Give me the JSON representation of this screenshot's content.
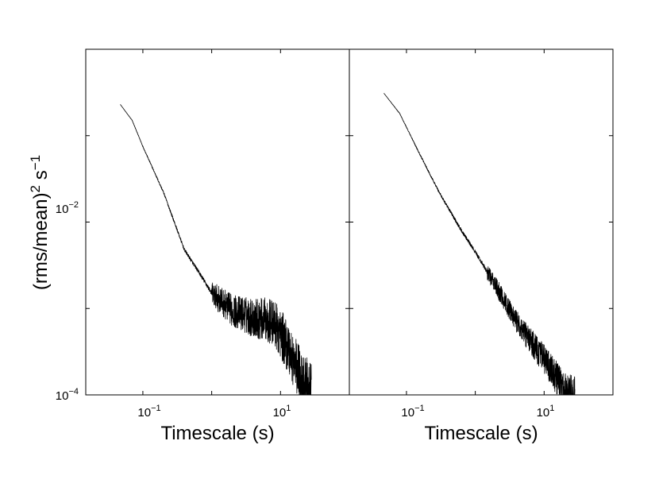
{
  "chart_data": [
    {
      "type": "line",
      "xlabel": "Timescale (s)",
      "ylabel": "(rms/mean)",
      "ylabel_sup1": "2",
      "ylabel_mid": " s",
      "ylabel_sup2": "−1",
      "x_scale": "log",
      "y_scale": "log",
      "xlim": [
        0.0148,
        100
      ],
      "ylim": [
        0.0001,
        1
      ],
      "x_ticks": [
        {
          "base": "10",
          "exp": "−1",
          "value": 0.1
        },
        {
          "base": "10",
          "exp": "1",
          "value": 10
        }
      ],
      "y_ticks": [
        {
          "base": "10",
          "exp": "−2",
          "value": 0.01
        },
        {
          "base": "10",
          "exp": "−4",
          "value": 0.0001
        }
      ],
      "grid": false,
      "series": [
        {
          "noise": 0.35,
          "noise_start": 1.0,
          "points": [
            [
              0.047,
              0.23
            ],
            [
              0.07,
              0.15
            ],
            [
              0.1,
              0.075
            ],
            [
              0.2,
              0.022
            ],
            [
              0.4,
              0.0048
            ],
            [
              0.7,
              0.0024
            ],
            [
              1.0,
              0.0015
            ],
            [
              2.0,
              0.00095
            ],
            [
              4.0,
              0.00078
            ],
            [
              6.0,
              0.00075
            ],
            [
              8.0,
              0.00068
            ],
            [
              12.0,
              0.0004
            ],
            [
              20.0,
              0.00016
            ],
            [
              28.0,
              0.0001
            ]
          ]
        }
      ]
    },
    {
      "type": "line",
      "xlabel": "Timescale (s)",
      "x_scale": "log",
      "y_scale": "log",
      "xlim": [
        0.0148,
        100
      ],
      "ylim": [
        0.0001,
        1
      ],
      "x_ticks": [
        {
          "base": "10",
          "exp": "−1",
          "value": 0.1
        },
        {
          "base": "10",
          "exp": "1",
          "value": 10
        }
      ],
      "grid": false,
      "series": [
        {
          "noise": 0.22,
          "noise_start": 1.5,
          "points": [
            [
              0.047,
              0.31
            ],
            [
              0.08,
              0.18
            ],
            [
              0.15,
              0.065
            ],
            [
              0.3,
              0.022
            ],
            [
              0.6,
              0.0085
            ],
            [
              1.0,
              0.0045
            ],
            [
              2.0,
              0.0018
            ],
            [
              4.0,
              0.0007
            ],
            [
              8.0,
              0.00033
            ],
            [
              15.0,
              0.00016
            ],
            [
              20.0,
              0.00011
            ],
            [
              28.0,
              0.0001
            ]
          ]
        }
      ]
    }
  ]
}
